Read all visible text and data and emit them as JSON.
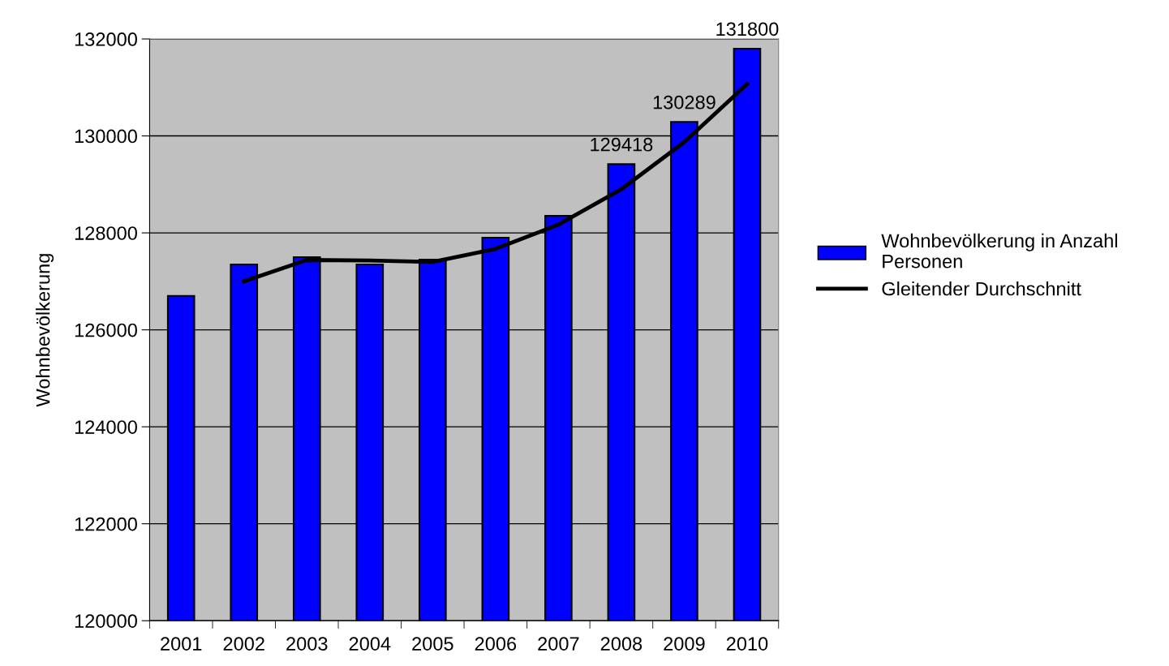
{
  "chart_data": {
    "type": "bar",
    "ylabel": "Wohnbevölkerung",
    "categories": [
      "2001",
      "2002",
      "2003",
      "2004",
      "2005",
      "2006",
      "2007",
      "2008",
      "2009",
      "2010"
    ],
    "series": [
      {
        "name": "Wohnbevölkerung in Anzahl\nPersonen",
        "color": "#0000ff",
        "values": [
          126700,
          127350,
          127500,
          127350,
          127450,
          127900,
          128350,
          129418,
          130289,
          131800
        ],
        "value_labels": [
          null,
          null,
          null,
          null,
          null,
          null,
          null,
          "129418",
          "130289",
          "131800"
        ]
      },
      {
        "name": "Gleitender Durchschnitt",
        "type": "line",
        "color": "#000000",
        "values": [
          null,
          127000,
          127440,
          127430,
          127400,
          127670,
          128170,
          128900,
          129870,
          131070
        ]
      }
    ],
    "ylim": [
      120000,
      132000
    ],
    "yticks": [
      120000,
      122000,
      124000,
      126000,
      128000,
      130000,
      132000
    ],
    "grid": "y",
    "legend": "right",
    "marker": "none",
    "line_style": "solid"
  }
}
